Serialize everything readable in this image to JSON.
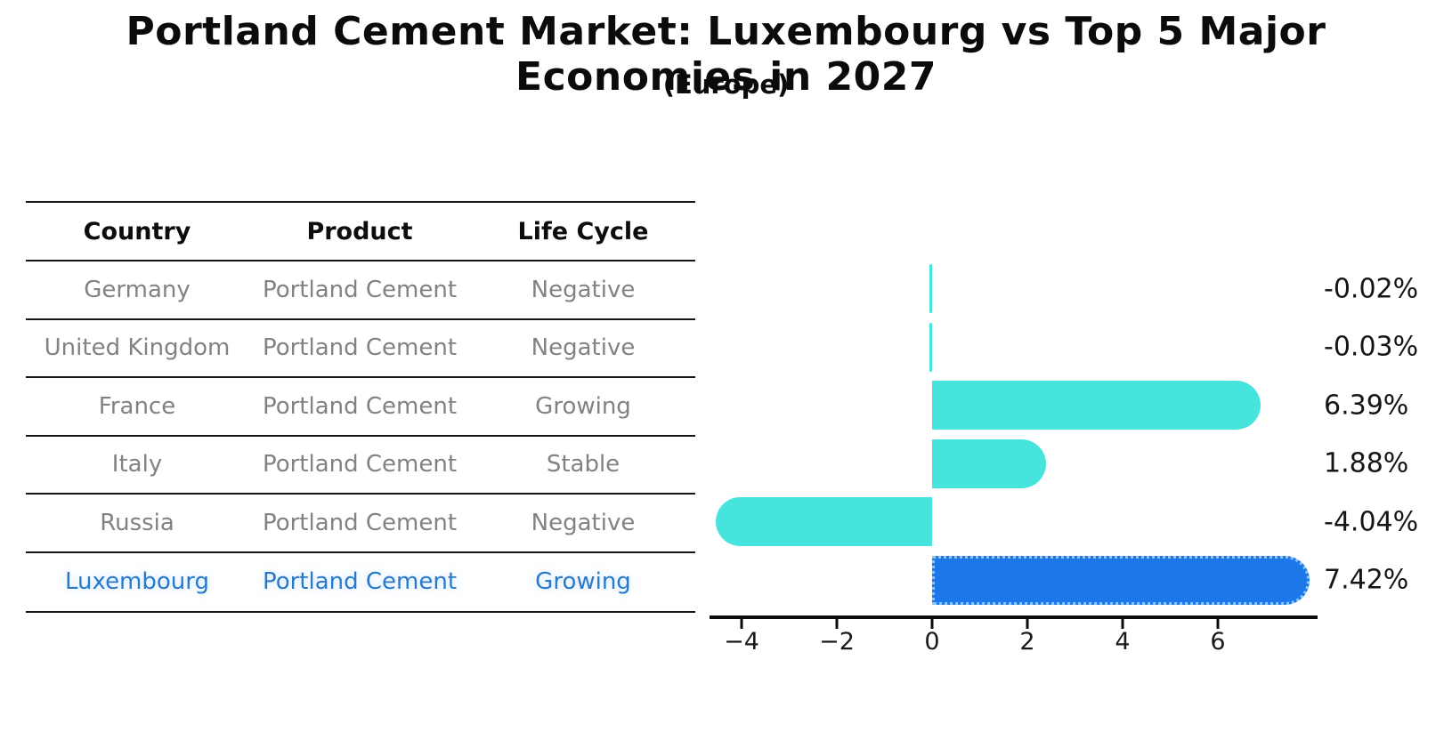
{
  "title": "Portland Cement Market: Luxembourg vs Top 5 Major Economies in 2027",
  "subtitle": "(Europe)",
  "table": {
    "headers": [
      "Country",
      "Product",
      "Life Cycle"
    ],
    "rows": [
      {
        "country": "Germany",
        "product": "Portland Cement",
        "life_cycle": "Negative",
        "highlight": false
      },
      {
        "country": "United Kingdom",
        "product": "Portland Cement",
        "life_cycle": "Negative",
        "highlight": false
      },
      {
        "country": "France",
        "product": "Portland Cement",
        "life_cycle": "Growing",
        "highlight": false
      },
      {
        "country": "Italy",
        "product": "Portland Cement",
        "life_cycle": "Stable",
        "highlight": false
      },
      {
        "country": "Russia",
        "product": "Portland Cement",
        "life_cycle": "Negative",
        "highlight": false
      },
      {
        "country": "Luxembourg",
        "product": "Portland Cement",
        "life_cycle": "Growing",
        "highlight": true
      }
    ]
  },
  "chart_data": {
    "type": "bar",
    "orientation": "horizontal",
    "title": "Portland Cement Market: Luxembourg vs Top 5 Major Economies in 2027",
    "subtitle": "(Europe)",
    "categories": [
      "Germany",
      "United Kingdom",
      "France",
      "Italy",
      "Russia",
      "Luxembourg"
    ],
    "values": [
      -0.02,
      -0.03,
      6.39,
      1.88,
      -4.04,
      7.42
    ],
    "value_labels": [
      "-0.02%",
      "-0.03%",
      "6.39%",
      "1.88%",
      "-4.04%",
      "7.42%"
    ],
    "x_ticks": [
      -4,
      -2,
      0,
      2,
      4,
      6
    ],
    "x_tick_labels": [
      "−4",
      "−2",
      "0",
      "2",
      "4",
      "6"
    ],
    "xlim": [
      -4.7,
      8.1
    ],
    "grid": false,
    "legend": false,
    "bar_color": "#47e4de",
    "highlight_color": "#1c78e8",
    "highlight_index": 5,
    "unit": "%"
  },
  "colors": {
    "background": "#ffffff",
    "bar_cyan": "#47e4de",
    "bar_blue": "#1c78e8",
    "table_text_gray": "#828282",
    "highlight_text_blue": "#2b79c9",
    "line_black": "#141414"
  }
}
